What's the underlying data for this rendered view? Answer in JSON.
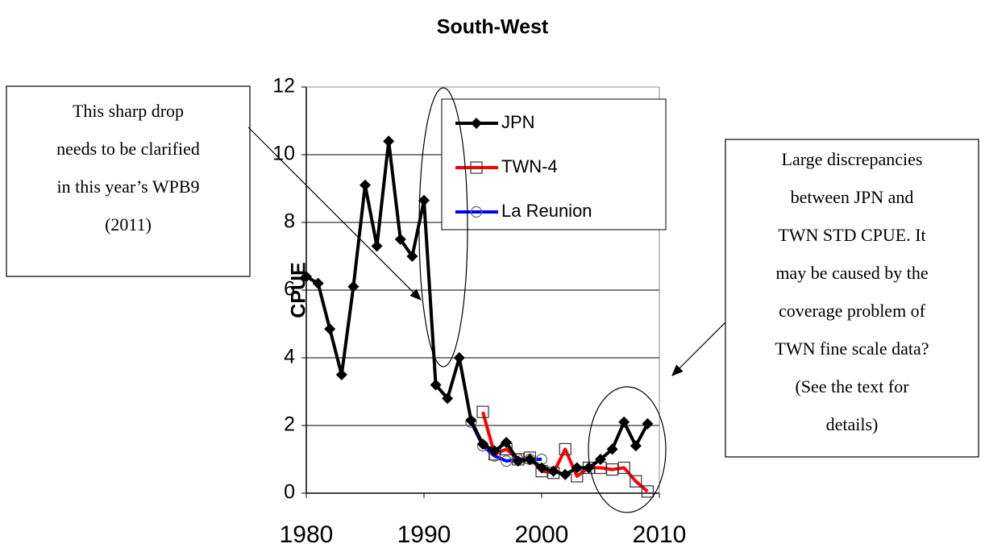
{
  "chart_data": {
    "type": "line",
    "title": "South-West",
    "y_label": "CPUE",
    "xlim": [
      1980,
      2010
    ],
    "xticks": [
      1980,
      1990,
      2000,
      2010
    ],
    "ylim": [
      0,
      12
    ],
    "yticks": [
      0,
      2,
      4,
      6,
      8,
      10,
      12
    ],
    "grid": true,
    "legend": "upper right",
    "series": [
      {
        "name": "JPN",
        "color": "#000000",
        "marker": "diamond",
        "x": [
          1980,
          1981,
          1982,
          1983,
          1984,
          1985,
          1986,
          1987,
          1988,
          1989,
          1990,
          1991,
          1992,
          1993,
          1994,
          1995,
          1996,
          1997,
          1998,
          1999,
          2000,
          2001,
          2002,
          2003,
          2004,
          2005,
          2006,
          2007,
          2008,
          2009
        ],
        "values": [
          6.4,
          6.2,
          4.85,
          3.5,
          6.1,
          9.1,
          7.3,
          10.4,
          7.5,
          7.0,
          8.65,
          3.2,
          2.8,
          4.0,
          2.15,
          1.45,
          1.25,
          1.5,
          0.95,
          1.0,
          0.75,
          0.65,
          0.55,
          0.75,
          0.75,
          1.0,
          1.3,
          2.1,
          1.4,
          2.05
        ]
      },
      {
        "name": "TWN-4",
        "color": "#ff0000",
        "marker": "square",
        "x": [
          1995,
          1996,
          1997,
          1998,
          1999,
          2000,
          2001,
          2002,
          2003,
          2004,
          2005,
          2006,
          2007,
          2008,
          2009
        ],
        "values": [
          2.4,
          1.15,
          1.3,
          1.0,
          1.05,
          0.65,
          0.6,
          1.3,
          0.5,
          0.75,
          0.75,
          0.7,
          0.75,
          0.35,
          0.05
        ]
      },
      {
        "name": "La Reunion",
        "color": "#0000ff",
        "marker": "circle",
        "x": [
          1994,
          1995,
          1996,
          1997,
          1998,
          1999,
          2000
        ],
        "values": [
          2.1,
          1.4,
          1.1,
          0.95,
          1.0,
          1.0,
          1.0
        ]
      }
    ],
    "annotations": [
      {
        "lines": [
          "This sharp drop",
          "needs to be clarified",
          "in this year’s WPB9",
          "(2011)"
        ]
      },
      {
        "lines": [
          "Large discrepancies",
          "between JPN and",
          "TWN STD CPUE. It",
          "may be caused by the",
          "coverage problem of",
          "TWN fine scale data?",
          "(See the text for",
          "details)"
        ]
      }
    ]
  }
}
